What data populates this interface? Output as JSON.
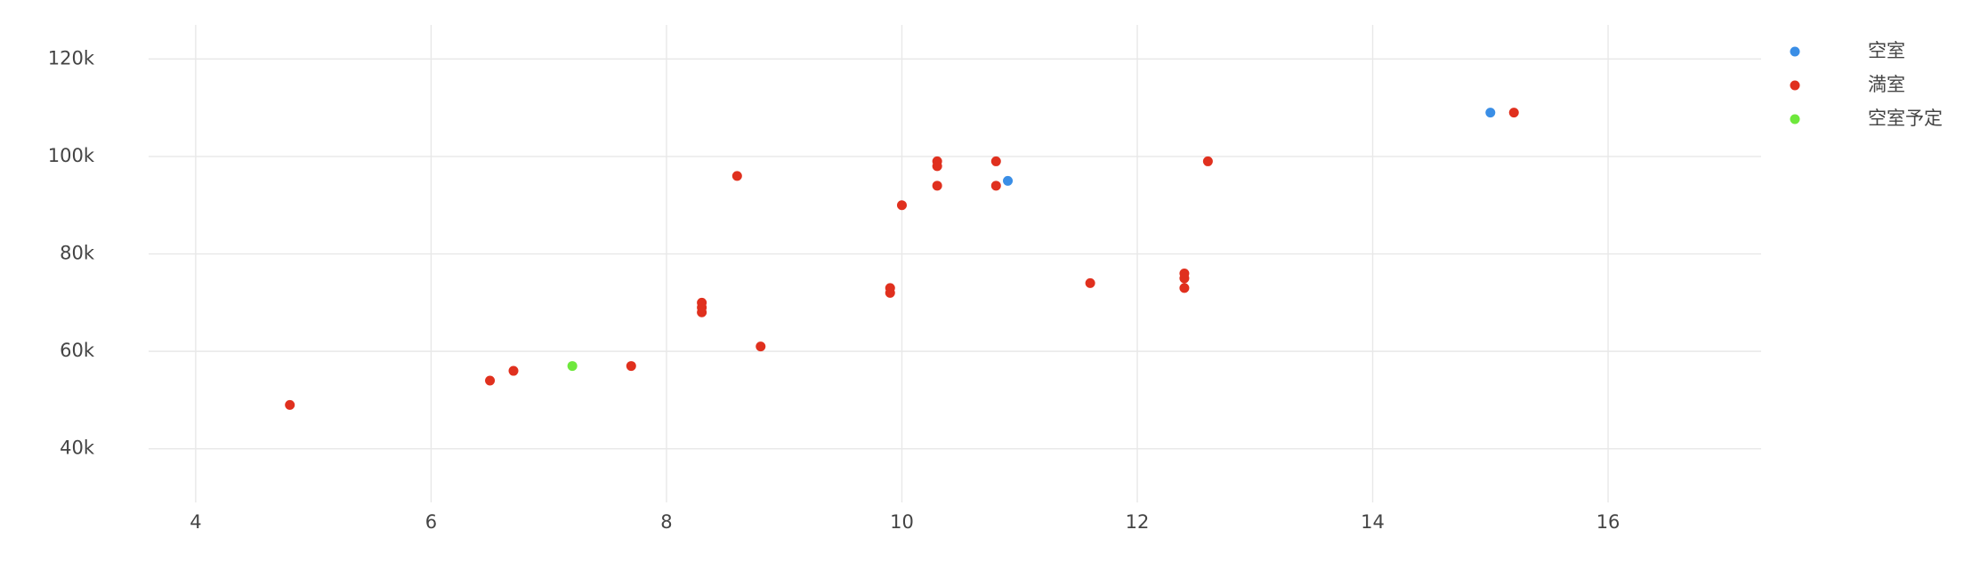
{
  "chart_data": {
    "type": "scatter",
    "xlim": [
      3.6,
      17.3
    ],
    "ylim": [
      29000,
      127000
    ],
    "xticks": [
      4,
      6,
      8,
      10,
      12,
      14,
      16
    ],
    "yticks": [
      {
        "value": 40000,
        "label": "40k"
      },
      {
        "value": 60000,
        "label": "60k"
      },
      {
        "value": 80000,
        "label": "80k"
      },
      {
        "value": 100000,
        "label": "100k"
      },
      {
        "value": 120000,
        "label": "120k"
      }
    ],
    "grid": true,
    "legend": "top-right",
    "series": [
      {
        "name": "空室",
        "color": "#3a8ee6",
        "x": [
          10.9,
          15.0
        ],
        "values": [
          95000,
          109000
        ]
      },
      {
        "name": "満室",
        "color": "#e0301e",
        "x": [
          4.8,
          6.5,
          6.7,
          7.7,
          8.3,
          8.3,
          8.3,
          8.6,
          8.8,
          9.9,
          9.9,
          10.0,
          10.3,
          10.3,
          10.3,
          10.8,
          10.8,
          11.6,
          12.4,
          12.4,
          12.4,
          12.6,
          15.2
        ],
        "values": [
          49000,
          54000,
          56000,
          57000,
          68000,
          69000,
          70000,
          96000,
          61000,
          72000,
          73000,
          90000,
          94000,
          98000,
          99000,
          94000,
          99000,
          74000,
          73000,
          75000,
          76000,
          99000,
          109000
        ]
      },
      {
        "name": "空室予定",
        "color": "#6ee83c",
        "x": [
          7.2
        ],
        "values": [
          57000
        ]
      }
    ]
  }
}
